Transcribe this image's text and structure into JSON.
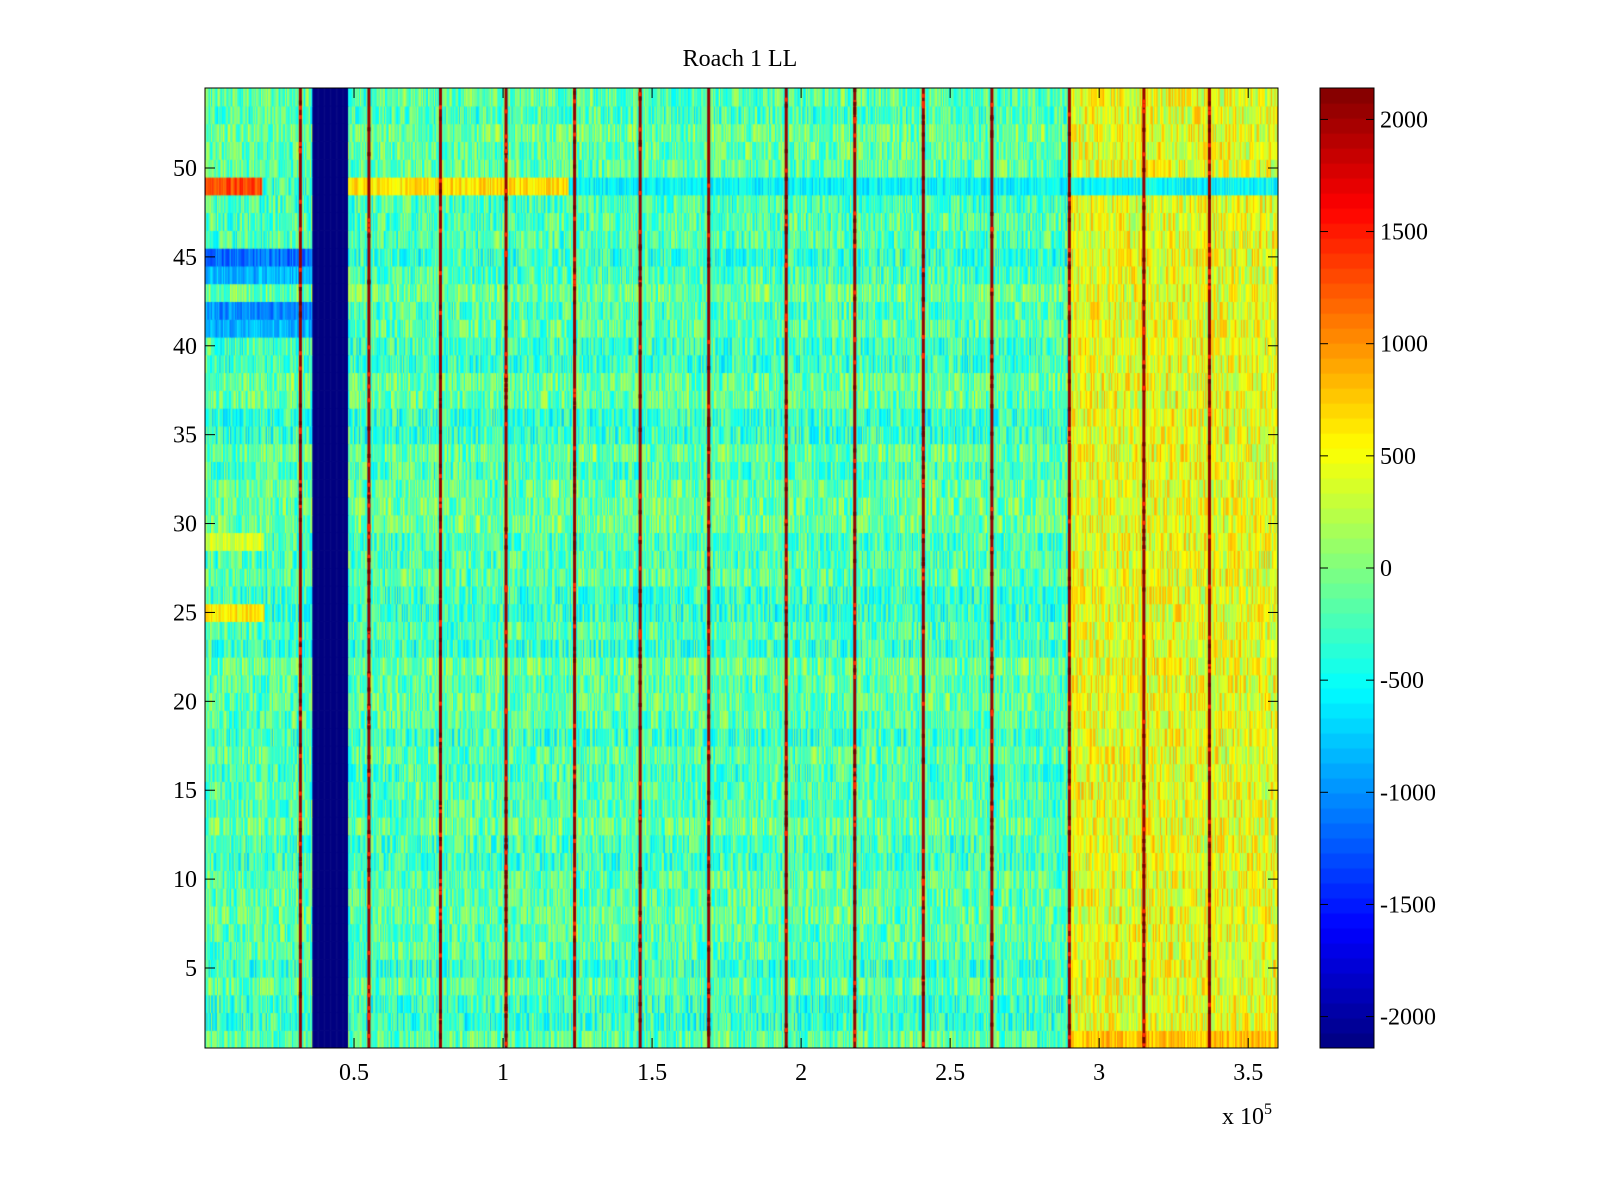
{
  "chart_data": {
    "type": "heatmap",
    "title": "Roach 1 LL",
    "xlabel": "",
    "ylabel": "",
    "xlim": [
      0,
      360000
    ],
    "ylim": [
      0.5,
      54.5
    ],
    "x_scale_label": "x 10",
    "x_scale_exponent": "5",
    "x_ticks": [
      {
        "value": 50000,
        "label": "0.5"
      },
      {
        "value": 100000,
        "label": "1"
      },
      {
        "value": 150000,
        "label": "1.5"
      },
      {
        "value": 200000,
        "label": "2"
      },
      {
        "value": 250000,
        "label": "2.5"
      },
      {
        "value": 300000,
        "label": "3"
      },
      {
        "value": 350000,
        "label": "3.5"
      }
    ],
    "y_ticks": [
      {
        "value": 5,
        "label": "5"
      },
      {
        "value": 10,
        "label": "10"
      },
      {
        "value": 15,
        "label": "15"
      },
      {
        "value": 20,
        "label": "20"
      },
      {
        "value": 25,
        "label": "25"
      },
      {
        "value": 30,
        "label": "30"
      },
      {
        "value": 35,
        "label": "35"
      },
      {
        "value": 40,
        "label": "40"
      },
      {
        "value": 45,
        "label": "45"
      },
      {
        "value": 50,
        "label": "50"
      }
    ],
    "colorbar": {
      "colormap": "jet",
      "range": [
        -2140,
        2140
      ],
      "ticks": [
        {
          "value": 2000,
          "label": "2000"
        },
        {
          "value": 1500,
          "label": "1500"
        },
        {
          "value": 1000,
          "label": "1000"
        },
        {
          "value": 500,
          "label": "500"
        },
        {
          "value": 0,
          "label": "0"
        },
        {
          "value": -500,
          "label": "-500"
        },
        {
          "value": -1000,
          "label": "-1000"
        },
        {
          "value": -1500,
          "label": "-1500"
        },
        {
          "value": -2000,
          "label": "-2000"
        }
      ]
    },
    "channels": 54,
    "baseline_value": -200,
    "saturated_low_band": {
      "x_start": 36000,
      "x_end": 48000,
      "value": -2140
    },
    "high_value_lines_x": [
      32000,
      55000,
      79000,
      101000,
      124000,
      146000,
      169000,
      195000,
      218000,
      241000,
      264000,
      290000,
      315000,
      337000
    ],
    "high_value_line_value": 1700,
    "warm_region": {
      "x_start": 290000,
      "x_end": 360000,
      "value": 450
    },
    "row_anomalies": [
      {
        "row": 49,
        "x_start": 0,
        "x_end": 19000,
        "value": 1300
      },
      {
        "row": 49,
        "x_start": 48000,
        "x_end": 122000,
        "value": 650
      },
      {
        "row": 49,
        "x_start": 122000,
        "x_end": 360000,
        "value": -550
      },
      {
        "row": 45,
        "x_start": 0,
        "x_end": 36000,
        "value": -1150
      },
      {
        "row": 44,
        "x_start": 0,
        "x_end": 36000,
        "value": -850
      },
      {
        "row": 42,
        "x_start": 0,
        "x_end": 36000,
        "value": -1000
      },
      {
        "row": 41,
        "x_start": 0,
        "x_end": 36000,
        "value": -850
      },
      {
        "row": 25,
        "x_start": 0,
        "x_end": 20000,
        "value": 600
      },
      {
        "row": 29,
        "x_start": 0,
        "x_end": 20000,
        "value": 350
      },
      {
        "row": 1,
        "x_start": 290000,
        "x_end": 360000,
        "value": 800
      }
    ]
  }
}
